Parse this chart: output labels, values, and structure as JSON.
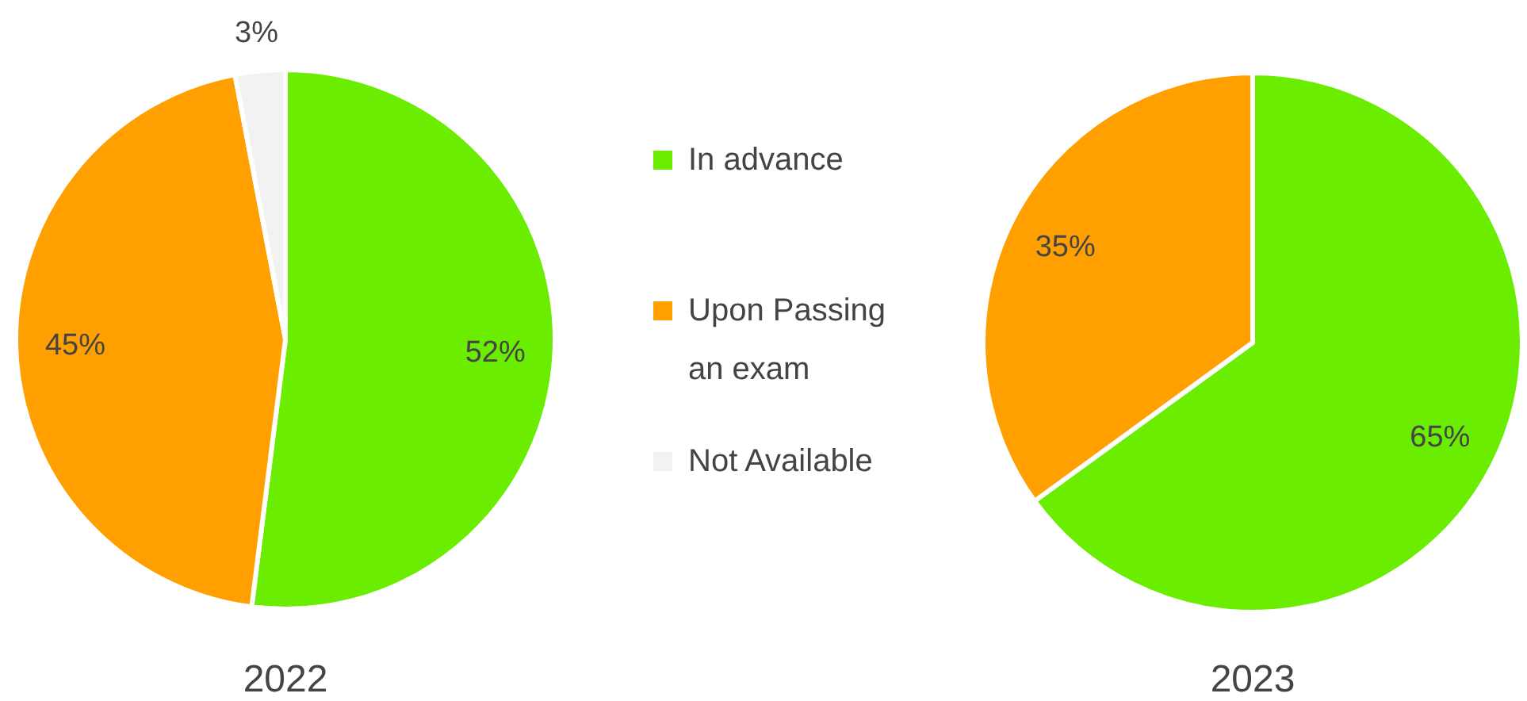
{
  "chart_data": {
    "type": "pie",
    "categories": [
      "In advance",
      "Upon Passing an exam",
      "Not Available"
    ],
    "colors": [
      "#6aed00",
      "#ff9f00",
      "#f2f2f2"
    ],
    "legend": "right",
    "series": [
      {
        "name": "2022",
        "values": [
          52,
          45,
          3
        ],
        "value_labels": [
          "52%",
          "45%",
          "3%"
        ]
      },
      {
        "name": "2023",
        "values": [
          65,
          35,
          null
        ],
        "value_labels": [
          "65%",
          "35%",
          null
        ]
      }
    ]
  }
}
